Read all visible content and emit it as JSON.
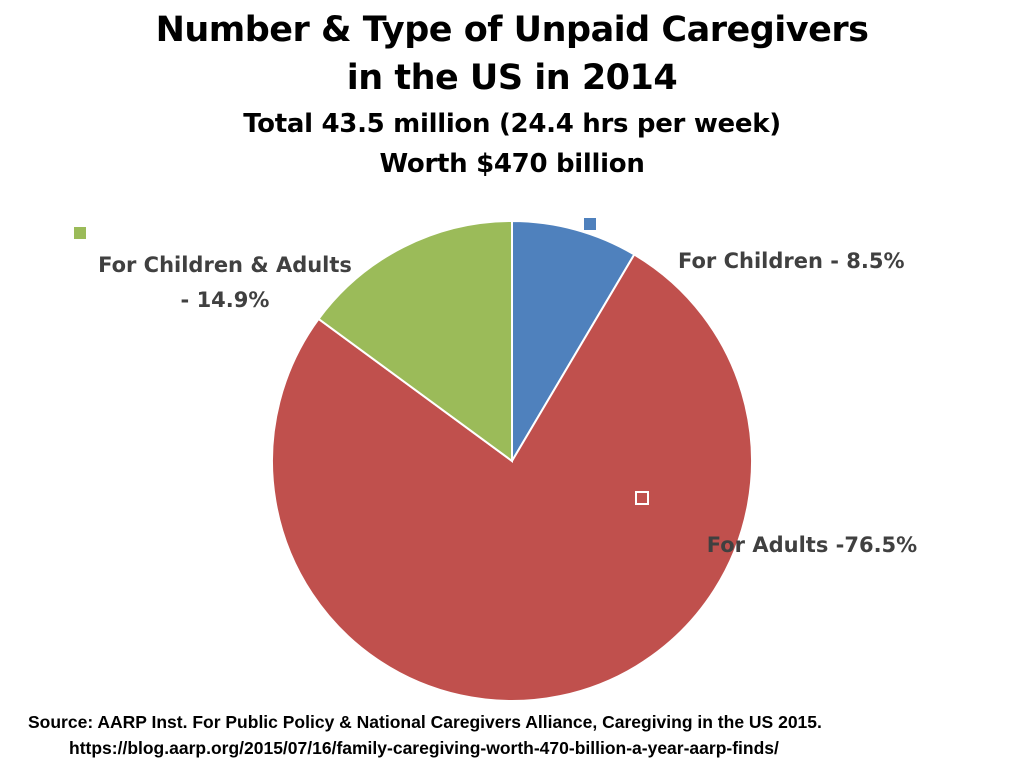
{
  "title": {
    "line1": "Number & Type of Unpaid Caregivers",
    "line2": "in the US in 2014",
    "subtitle1": "Total 43.5 million (24.4 hrs per week)",
    "subtitle2": "Worth $470 billion"
  },
  "chart_data": {
    "type": "pie",
    "start_angle_deg": 0,
    "direction": "clockwise",
    "slices": [
      {
        "key": "children",
        "label_line1": "For Children - 8.5%",
        "label_line2": "",
        "value": 8.5,
        "color": "#4f81bd"
      },
      {
        "key": "adults",
        "label_line1": "For Adults -76.5%",
        "label_line2": "",
        "value": 76.5,
        "color": "#c0504d"
      },
      {
        "key": "children_adults",
        "label_line1": "For Children & Adults",
        "label_line2": "- 14.9%",
        "value": 14.9,
        "color": "#9bbb59"
      }
    ],
    "border_color": "#ffffff",
    "label_color": "#404040"
  },
  "source": {
    "line1": "Source: AARP Inst. For Public Policy & National Caregivers Alliance, Caregiving in the US 2015.",
    "line2": "https://blog.aarp.org/2015/07/16/family-caregiving-worth-470-billion-a-year-aarp-finds/"
  }
}
